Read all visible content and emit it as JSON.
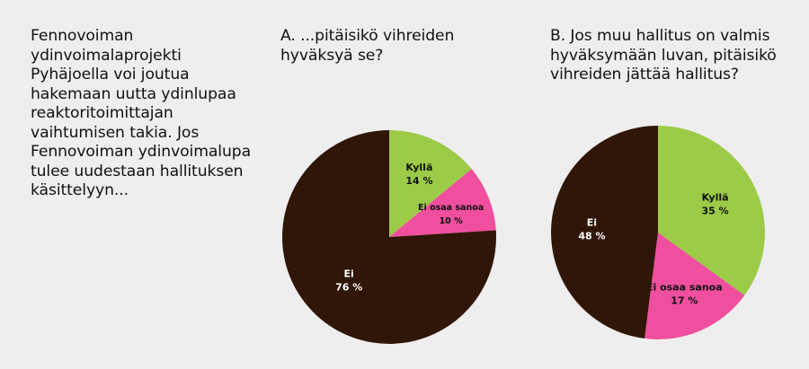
{
  "intro_text": "Fennovoiman ydinvoimalaprojekti Pyhäjoella voi joutua hakemaan uutta ydinlupaa reaktoritoimittajan vaihtumisen takia. Jos Fennovoiman ydinvoimalupa tulee uudestaan hallituksen käsittelyyn...",
  "chart_data": [
    {
      "type": "pie",
      "title": "A. ...pitäisikö vihreiden hyväksyä se?",
      "categories": [
        "Kyllä",
        "Ei osaa sanoa",
        "Ei"
      ],
      "values": [
        14,
        10,
        76
      ],
      "value_labels": [
        "14 %",
        "10 %",
        "76 %"
      ],
      "colors": [
        "#9ccb48",
        "#f04e9e",
        "#2f1606"
      ],
      "label_colors": [
        "#111111",
        "#111111",
        "#ffffff"
      ]
    },
    {
      "type": "pie",
      "title": "B. Jos muu hallitus on valmis hyväksymään luvan, pitäisikö vihreiden jättää hallitus?",
      "categories": [
        "Kyllä",
        "Ei osaa sanoa",
        "Ei"
      ],
      "values": [
        35,
        17,
        48
      ],
      "value_labels": [
        "35 %",
        "17 %",
        "48 %"
      ],
      "colors": [
        "#9ccb48",
        "#f04e9e",
        "#2f1606"
      ],
      "label_colors": [
        "#111111",
        "#111111",
        "#ffffff"
      ]
    }
  ]
}
